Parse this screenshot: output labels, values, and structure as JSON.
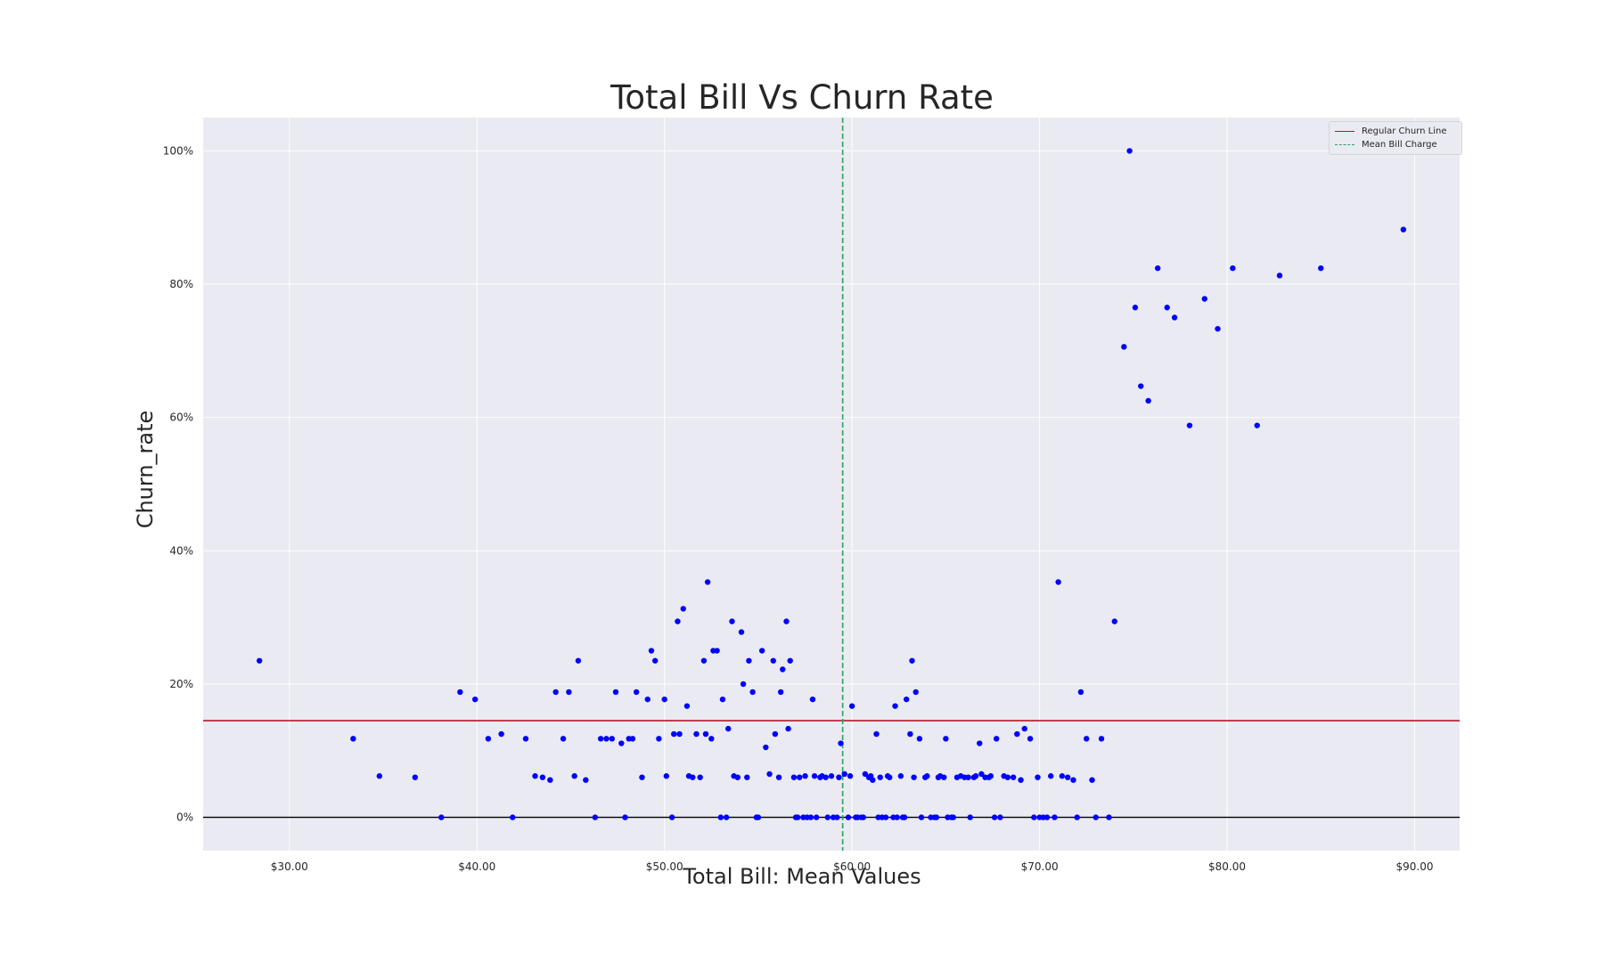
{
  "chart_data": {
    "type": "scatter",
    "title": "Total Bill Vs Churn Rate",
    "xlabel": "Total Bill: Mean Values",
    "ylabel": "Churn_rate",
    "xlim": [
      25.4,
      92.4
    ],
    "ylim": [
      -0.05,
      1.05
    ],
    "x_ticks": [
      30,
      40,
      50,
      60,
      70,
      80,
      90
    ],
    "x_tick_labels": [
      "$30.00",
      "$40.00",
      "$50.00",
      "$60.00",
      "$70.00",
      "$80.00",
      "$90.00"
    ],
    "y_ticks": [
      0,
      0.2,
      0.4,
      0.6,
      0.8,
      1.0
    ],
    "y_tick_labels": [
      "0%",
      "20%",
      "40%",
      "60%",
      "80%",
      "100%"
    ],
    "grid": true,
    "legend_position": "top-right",
    "legend": [
      {
        "label": "Regular Churn Line",
        "style": "solid",
        "color": "#b2182b"
      },
      {
        "label": "Mean Bill Charge",
        "style": "dashed",
        "color": "#2ca25f"
      }
    ],
    "reference_lines": {
      "regular_churn_rate": 0.145,
      "mean_bill_charge": 59.5,
      "zero_line": 0
    },
    "colors": {
      "points": "#0000ff",
      "plot_background": "#eaeaf2",
      "grid": "#ffffff",
      "zero_line": "#000000"
    },
    "points": [
      [
        28.4,
        0.235
      ],
      [
        33.4,
        0.118
      ],
      [
        34.8,
        0.062
      ],
      [
        36.7,
        0.06
      ],
      [
        38.1,
        0.0
      ],
      [
        39.1,
        0.188
      ],
      [
        39.9,
        0.177
      ],
      [
        40.6,
        0.118
      ],
      [
        41.3,
        0.125
      ],
      [
        41.9,
        0.0
      ],
      [
        42.6,
        0.118
      ],
      [
        43.1,
        0.062
      ],
      [
        43.5,
        0.06
      ],
      [
        43.9,
        0.056
      ],
      [
        44.2,
        0.188
      ],
      [
        44.6,
        0.118
      ],
      [
        44.9,
        0.188
      ],
      [
        45.2,
        0.062
      ],
      [
        45.4,
        0.235
      ],
      [
        45.8,
        0.056
      ],
      [
        46.3,
        0.0
      ],
      [
        46.6,
        0.118
      ],
      [
        46.9,
        0.118
      ],
      [
        47.2,
        0.118
      ],
      [
        47.4,
        0.188
      ],
      [
        47.7,
        0.111
      ],
      [
        47.9,
        0.0
      ],
      [
        48.1,
        0.118
      ],
      [
        48.3,
        0.118
      ],
      [
        48.5,
        0.188
      ],
      [
        48.8,
        0.06
      ],
      [
        49.1,
        0.177
      ],
      [
        49.3,
        0.25
      ],
      [
        49.5,
        0.235
      ],
      [
        49.7,
        0.118
      ],
      [
        50.0,
        0.177
      ],
      [
        50.1,
        0.062
      ],
      [
        50.4,
        0.0
      ],
      [
        50.5,
        0.125
      ],
      [
        50.7,
        0.294
      ],
      [
        50.8,
        0.125
      ],
      [
        51.0,
        0.313
      ],
      [
        51.2,
        0.167
      ],
      [
        51.3,
        0.062
      ],
      [
        51.5,
        0.06
      ],
      [
        51.7,
        0.125
      ],
      [
        51.9,
        0.06
      ],
      [
        52.1,
        0.235
      ],
      [
        52.2,
        0.125
      ],
      [
        52.3,
        0.353
      ],
      [
        52.5,
        0.118
      ],
      [
        52.6,
        0.25
      ],
      [
        52.8,
        0.25
      ],
      [
        53.0,
        0.0
      ],
      [
        53.1,
        0.177
      ],
      [
        53.3,
        0.0
      ],
      [
        53.4,
        0.133
      ],
      [
        53.6,
        0.294
      ],
      [
        53.7,
        0.062
      ],
      [
        53.9,
        0.06
      ],
      [
        54.1,
        0.278
      ],
      [
        54.2,
        0.2
      ],
      [
        54.4,
        0.06
      ],
      [
        54.5,
        0.235
      ],
      [
        54.7,
        0.188
      ],
      [
        54.9,
        0.0
      ],
      [
        55.0,
        0.0
      ],
      [
        55.2,
        0.25
      ],
      [
        55.4,
        0.105
      ],
      [
        55.6,
        0.065
      ],
      [
        55.8,
        0.235
      ],
      [
        55.9,
        0.125
      ],
      [
        56.1,
        0.06
      ],
      [
        56.2,
        0.188
      ],
      [
        56.3,
        0.222
      ],
      [
        56.5,
        0.294
      ],
      [
        56.6,
        0.133
      ],
      [
        56.7,
        0.235
      ],
      [
        56.9,
        0.06
      ],
      [
        57.0,
        0.0
      ],
      [
        57.1,
        0.0
      ],
      [
        57.2,
        0.06
      ],
      [
        57.4,
        0.0
      ],
      [
        57.5,
        0.062
      ],
      [
        57.6,
        0.0
      ],
      [
        57.8,
        0.0
      ],
      [
        57.9,
        0.177
      ],
      [
        58.0,
        0.062
      ],
      [
        58.1,
        0.0
      ],
      [
        58.3,
        0.06
      ],
      [
        58.4,
        0.062
      ],
      [
        58.6,
        0.06
      ],
      [
        58.7,
        0.0
      ],
      [
        58.9,
        0.062
      ],
      [
        59.0,
        0.0
      ],
      [
        59.2,
        0.0
      ],
      [
        59.3,
        0.06
      ],
      [
        59.4,
        0.111
      ],
      [
        59.6,
        0.065
      ],
      [
        59.8,
        0.0
      ],
      [
        59.9,
        0.062
      ],
      [
        60.0,
        0.167
      ],
      [
        60.2,
        0.0
      ],
      [
        60.3,
        0.0
      ],
      [
        60.5,
        0.0
      ],
      [
        60.6,
        0.0
      ],
      [
        60.7,
        0.065
      ],
      [
        60.9,
        0.06
      ],
      [
        61.0,
        0.062
      ],
      [
        61.1,
        0.056
      ],
      [
        61.3,
        0.125
      ],
      [
        61.4,
        0.0
      ],
      [
        61.5,
        0.06
      ],
      [
        61.6,
        0.0
      ],
      [
        61.8,
        0.0
      ],
      [
        61.9,
        0.062
      ],
      [
        62.0,
        0.06
      ],
      [
        62.2,
        0.0
      ],
      [
        62.3,
        0.167
      ],
      [
        62.4,
        0.0
      ],
      [
        62.6,
        0.062
      ],
      [
        62.7,
        0.0
      ],
      [
        62.8,
        0.0
      ],
      [
        62.9,
        0.177
      ],
      [
        63.1,
        0.125
      ],
      [
        63.2,
        0.235
      ],
      [
        63.3,
        0.06
      ],
      [
        63.4,
        0.188
      ],
      [
        63.6,
        0.118
      ],
      [
        63.7,
        0.0
      ],
      [
        63.9,
        0.06
      ],
      [
        64.0,
        0.062
      ],
      [
        64.2,
        0.0
      ],
      [
        64.4,
        0.0
      ],
      [
        64.5,
        0.0
      ],
      [
        64.6,
        0.06
      ],
      [
        64.7,
        0.062
      ],
      [
        64.9,
        0.06
      ],
      [
        65.0,
        0.118
      ],
      [
        65.1,
        0.0
      ],
      [
        65.3,
        0.0
      ],
      [
        65.4,
        0.0
      ],
      [
        65.6,
        0.06
      ],
      [
        65.8,
        0.062
      ],
      [
        66.0,
        0.06
      ],
      [
        66.2,
        0.06
      ],
      [
        66.3,
        0.0
      ],
      [
        66.5,
        0.06
      ],
      [
        66.6,
        0.062
      ],
      [
        66.8,
        0.111
      ],
      [
        66.9,
        0.065
      ],
      [
        67.1,
        0.06
      ],
      [
        67.3,
        0.06
      ],
      [
        67.4,
        0.062
      ],
      [
        67.6,
        0.0
      ],
      [
        67.7,
        0.118
      ],
      [
        67.9,
        0.0
      ],
      [
        68.1,
        0.062
      ],
      [
        68.3,
        0.06
      ],
      [
        68.6,
        0.06
      ],
      [
        68.8,
        0.125
      ],
      [
        69.0,
        0.056
      ],
      [
        69.2,
        0.133
      ],
      [
        69.5,
        0.118
      ],
      [
        69.7,
        0.0
      ],
      [
        69.9,
        0.06
      ],
      [
        70.0,
        0.0
      ],
      [
        70.2,
        0.0
      ],
      [
        70.4,
        0.0
      ],
      [
        70.6,
        0.062
      ],
      [
        70.8,
        0.0
      ],
      [
        71.0,
        0.353
      ],
      [
        71.2,
        0.062
      ],
      [
        71.5,
        0.06
      ],
      [
        71.8,
        0.056
      ],
      [
        72.0,
        0.0
      ],
      [
        72.2,
        0.188
      ],
      [
        72.5,
        0.118
      ],
      [
        72.8,
        0.056
      ],
      [
        73.0,
        0.0
      ],
      [
        73.3,
        0.118
      ],
      [
        73.7,
        0.0
      ],
      [
        74.0,
        0.294
      ],
      [
        74.5,
        0.706
      ],
      [
        74.8,
        1.0
      ],
      [
        75.1,
        0.765
      ],
      [
        75.4,
        0.647
      ],
      [
        75.8,
        0.625
      ],
      [
        76.3,
        0.824
      ],
      [
        76.8,
        0.765
      ],
      [
        77.2,
        0.75
      ],
      [
        78.0,
        0.588
      ],
      [
        78.8,
        0.778
      ],
      [
        79.5,
        0.733
      ],
      [
        80.3,
        0.824
      ],
      [
        81.6,
        0.588
      ],
      [
        82.8,
        0.813
      ],
      [
        85.0,
        0.824
      ],
      [
        89.4,
        0.882
      ]
    ]
  }
}
